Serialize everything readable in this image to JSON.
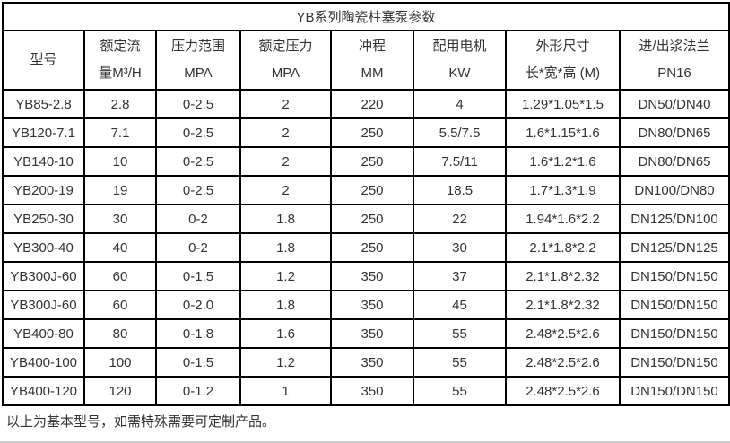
{
  "page": {
    "title": "YB系列陶瓷柱塞泵参数",
    "footnote": "以上为基本型号，如需特殊需要可定制产品。"
  },
  "colors": {
    "border": "#000000",
    "text": "#333333",
    "background": "#ffffff",
    "bottom_divider": "#cccccc"
  },
  "table": {
    "columns": [
      {
        "line1": "型号",
        "line2": ""
      },
      {
        "line1": "额定流",
        "line2": "量M³/H"
      },
      {
        "line1": "压力范围",
        "line2": "MPA"
      },
      {
        "line1": "额定压力",
        "line2": "MPA"
      },
      {
        "line1": "冲程",
        "line2": "MM"
      },
      {
        "line1": "配用电机",
        "line2": "KW"
      },
      {
        "line1": "外形尺寸",
        "line2": "长*宽*高 (M)"
      },
      {
        "line1": "进/出浆法兰",
        "line2": "PN16"
      }
    ],
    "rows": [
      [
        "YB85-2.8",
        "2.8",
        "0-2.5",
        "2",
        "220",
        "4",
        "1.29*1.05*1.5",
        "DN50/DN40"
      ],
      [
        "YB120-7.1",
        "7.1",
        "0-2.5",
        "2",
        "250",
        "5.5/7.5",
        "1.6*1.15*1.6",
        "DN80/DN65"
      ],
      [
        "YB140-10",
        "10",
        "0-2.5",
        "2",
        "250",
        "7.5/11",
        "1.6*1.2*1.6",
        "DN80/DN65"
      ],
      [
        "YB200-19",
        "19",
        "0-2.5",
        "2",
        "250",
        "18.5",
        "1.7*1.3*1.9",
        "DN100/DN80"
      ],
      [
        "YB250-30",
        "30",
        "0-2",
        "1.8",
        "250",
        "22",
        "1.94*1.6*2.2",
        "DN125/DN100"
      ],
      [
        "YB300-40",
        "40",
        "0-2",
        "1.8",
        "250",
        "30",
        "2.1*1.8*2.2",
        "DN125/DN125"
      ],
      [
        "YB300J-60",
        "60",
        "0-1.5",
        "1.2",
        "350",
        "37",
        "2.1*1.8*2.32",
        "DN150/DN150"
      ],
      [
        "YB300J-60",
        "60",
        "0-2.0",
        "1.8",
        "350",
        "45",
        "2.1*1.8*2.32",
        "DN150/DN150"
      ],
      [
        "YB400-80",
        "80",
        "0-1.8",
        "1.6",
        "350",
        "55",
        "2.48*2.5*2.6",
        "DN150/DN150"
      ],
      [
        "YB400-100",
        "100",
        "0-1.5",
        "1.2",
        "350",
        "55",
        "2.48*2.5*2.6",
        "DN150/DN150"
      ],
      [
        "YB400-120",
        "120",
        "0-1.2",
        "1",
        "350",
        "55",
        "2.48*2.5*2.6",
        "DN150/DN150"
      ]
    ]
  }
}
